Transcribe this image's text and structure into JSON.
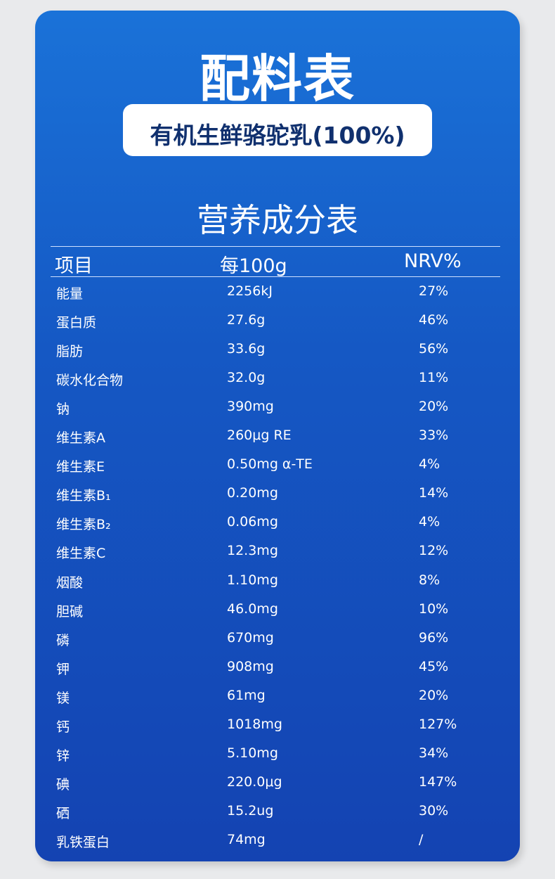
{
  "header": {
    "title": "配料表",
    "ingredient": "有机生鲜骆驼乳(100%)"
  },
  "table": {
    "title": "营养成分表",
    "columns": [
      "项目",
      "每100g",
      "NRV%"
    ],
    "rows": [
      [
        "能量",
        "2256kJ",
        "27%"
      ],
      [
        "蛋白质",
        "27.6g",
        "46%"
      ],
      [
        "脂肪",
        "33.6g",
        "56%"
      ],
      [
        "碳水化合物",
        "32.0g",
        "11%"
      ],
      [
        "钠",
        "390mg",
        "20%"
      ],
      [
        "维生素A",
        "260μg RE",
        "33%"
      ],
      [
        "维生素E",
        "0.50mg α-TE",
        "4%"
      ],
      [
        "维生素B₁",
        "0.20mg",
        "14%"
      ],
      [
        "维生素B₂",
        "0.06mg",
        "4%"
      ],
      [
        "维生素C",
        "12.3mg",
        "12%"
      ],
      [
        "烟酸",
        "1.10mg",
        "8%"
      ],
      [
        "胆碱",
        "46.0mg",
        "10%"
      ],
      [
        "磷",
        "670mg",
        "96%"
      ],
      [
        "钾",
        "908mg",
        "45%"
      ],
      [
        "镁",
        "61mg",
        "20%"
      ],
      [
        "钙",
        "1018mg",
        "127%"
      ],
      [
        "锌",
        "5.10mg",
        "34%"
      ],
      [
        "碘",
        "220.0μg",
        "147%"
      ],
      [
        "硒",
        "15.2ug",
        "30%"
      ],
      [
        "乳铁蛋白",
        "74mg",
        "/"
      ]
    ]
  }
}
